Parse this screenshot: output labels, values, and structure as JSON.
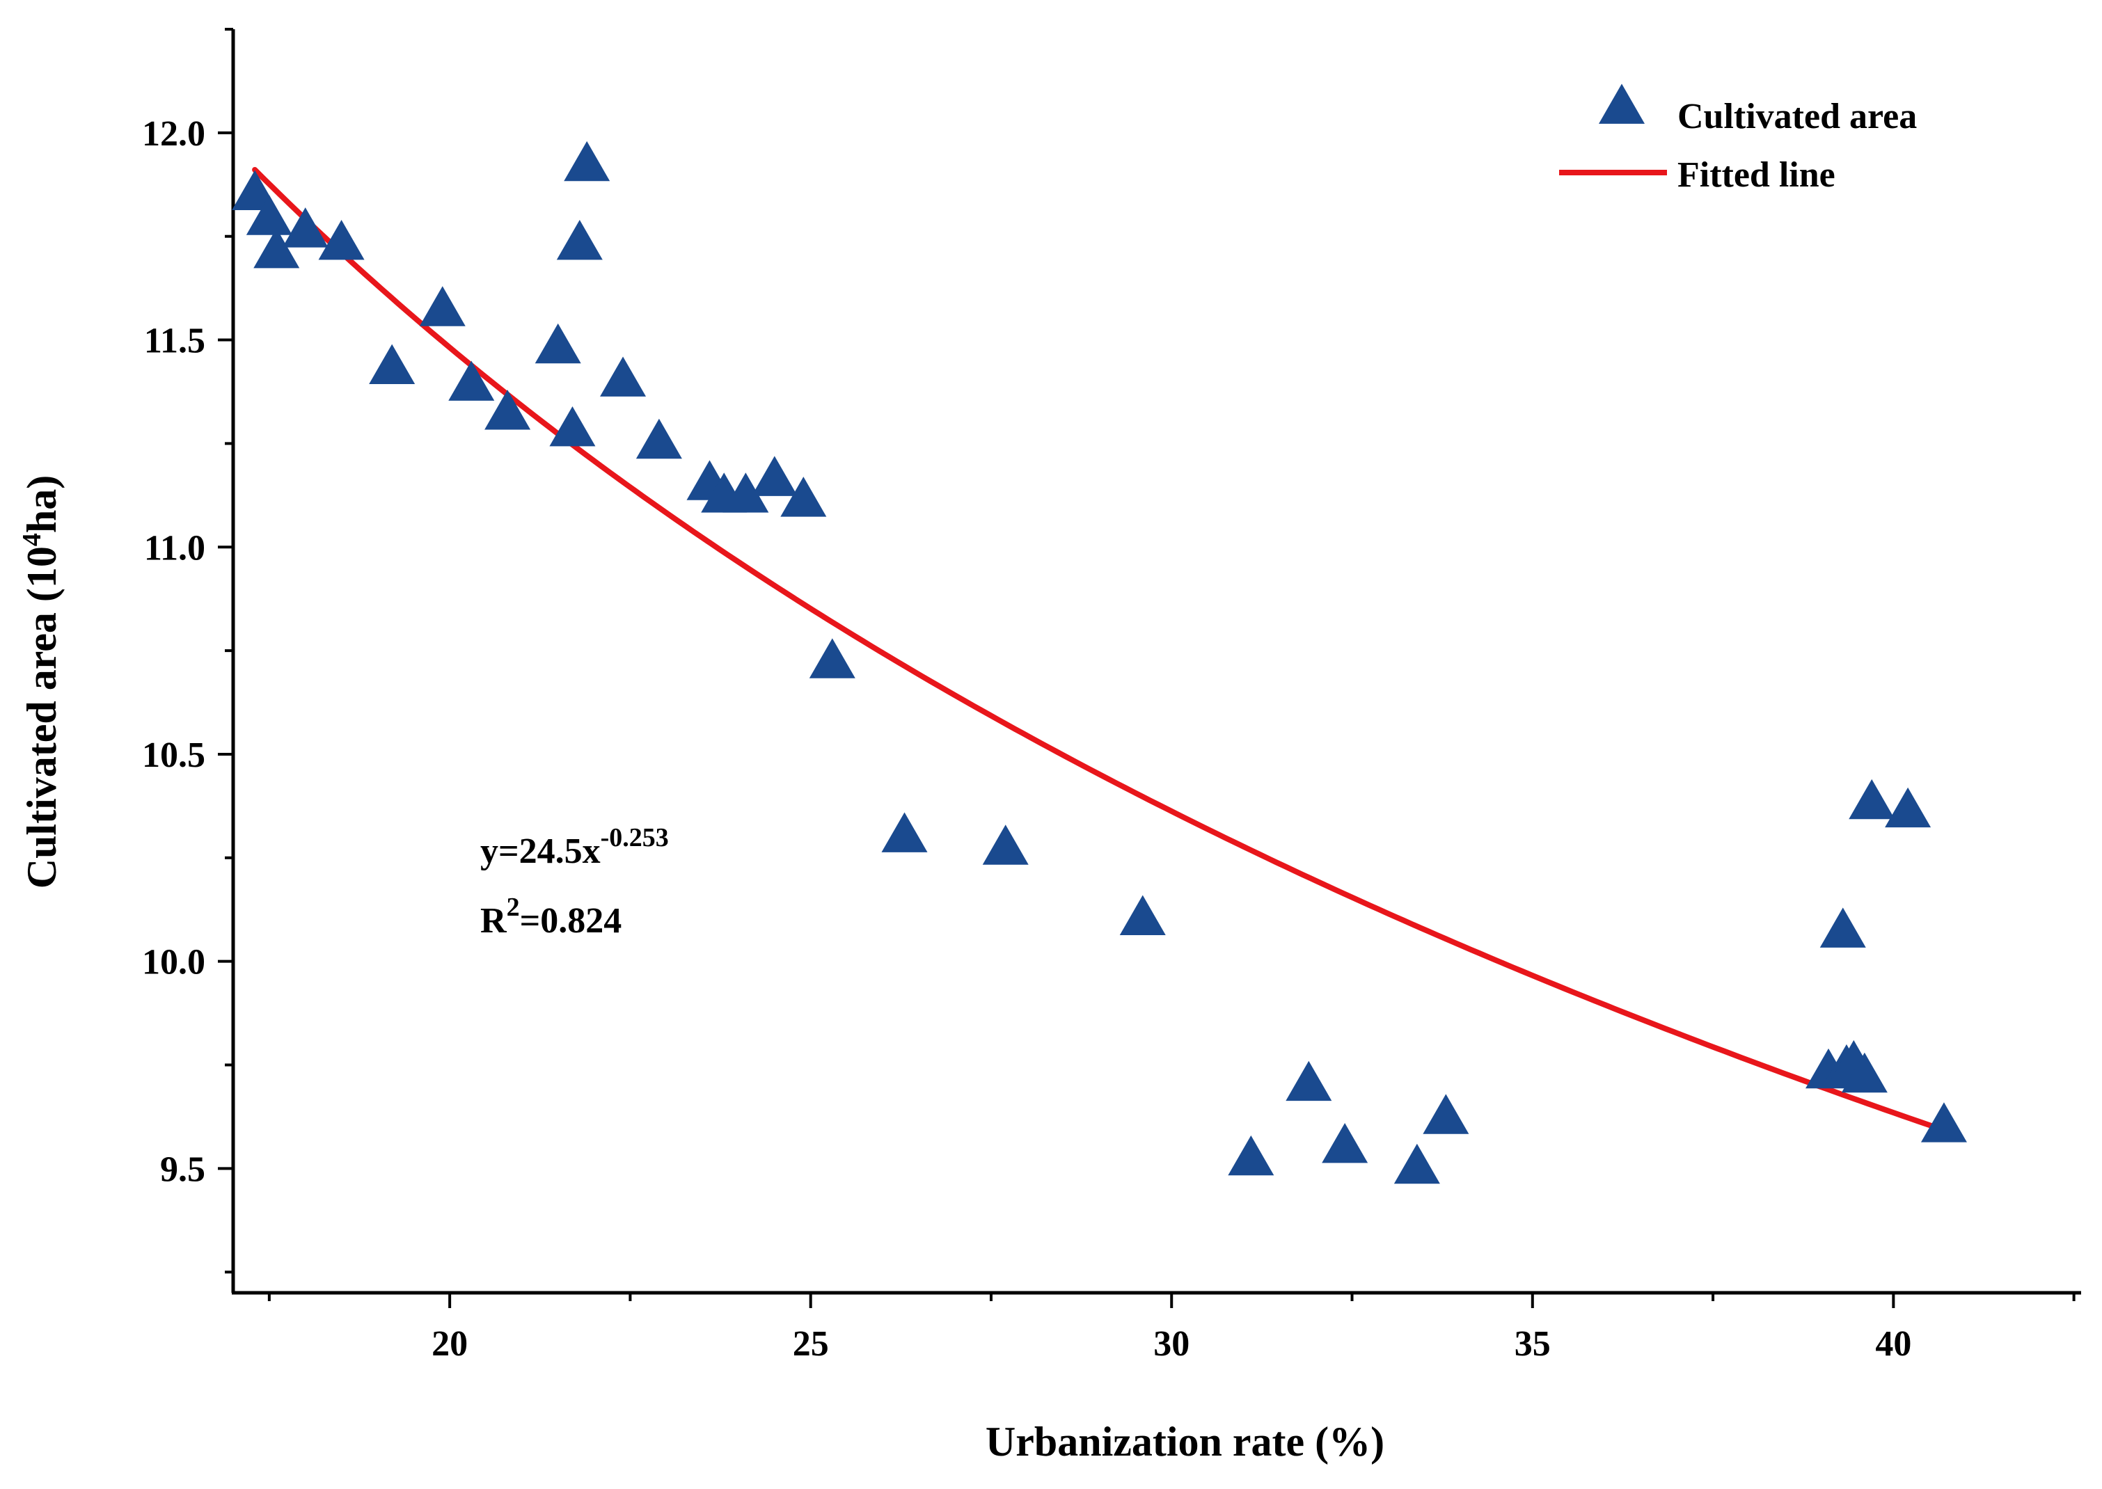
{
  "chart_data": {
    "type": "scatter",
    "xlabel": "Urbanization rate (%)",
    "ylabel_prefix": "Cultivated area (10",
    "ylabel_sup": "4",
    "ylabel_suffix": "ha)",
    "xlim": [
      17.0,
      42.6
    ],
    "ylim": [
      9.2,
      12.25
    ],
    "x_ticks": [
      20,
      25,
      30,
      35,
      40
    ],
    "x_tick_labels": [
      "20",
      "25",
      "30",
      "35",
      "40"
    ],
    "x_minor_ticks": [
      17.5,
      22.5,
      27.5,
      32.5,
      37.5,
      42.5
    ],
    "y_ticks": [
      9.5,
      10.0,
      10.5,
      11.0,
      11.5,
      12.0
    ],
    "y_tick_labels": [
      "9.5",
      "10.0",
      "10.5",
      "11.0",
      "11.5",
      "12.0"
    ],
    "y_minor_ticks": [
      9.25,
      9.75,
      10.25,
      10.75,
      11.25,
      11.75,
      12.25
    ],
    "legend": [
      {
        "name": "Cultivated area",
        "marker": "triangle",
        "color": "#1a4a8f"
      },
      {
        "name": "Fitted line",
        "marker": "line",
        "color": "#e8161b"
      }
    ],
    "annotation": {
      "equation_prefix": "y=24.5x",
      "equation_exponent": "-0.253",
      "r2_prefix": "R",
      "r2_sup": "2",
      "r2_suffix": "=0.824"
    },
    "series": [
      {
        "name": "Cultivated area",
        "type": "scatter",
        "color": "#1a4a8f",
        "points": [
          [
            17.3,
            11.85
          ],
          [
            17.5,
            11.79
          ],
          [
            17.6,
            11.71
          ],
          [
            18.0,
            11.76
          ],
          [
            18.5,
            11.73
          ],
          [
            19.2,
            11.43
          ],
          [
            19.9,
            11.57
          ],
          [
            20.3,
            11.39
          ],
          [
            20.8,
            11.32
          ],
          [
            21.5,
            11.48
          ],
          [
            21.7,
            11.28
          ],
          [
            21.8,
            11.73
          ],
          [
            21.9,
            11.92
          ],
          [
            22.4,
            11.4
          ],
          [
            22.9,
            11.25
          ],
          [
            23.6,
            11.15
          ],
          [
            23.8,
            11.12
          ],
          [
            24.1,
            11.12
          ],
          [
            24.5,
            11.16
          ],
          [
            24.9,
            11.11
          ],
          [
            25.3,
            10.72
          ],
          [
            26.3,
            10.3
          ],
          [
            27.7,
            10.27
          ],
          [
            29.6,
            10.1
          ],
          [
            31.1,
            9.52
          ],
          [
            31.9,
            9.7
          ],
          [
            32.4,
            9.55
          ],
          [
            33.4,
            9.5
          ],
          [
            33.8,
            9.62
          ],
          [
            39.1,
            9.73
          ],
          [
            39.35,
            9.74
          ],
          [
            39.45,
            9.75
          ],
          [
            39.6,
            9.72
          ],
          [
            39.3,
            10.07
          ],
          [
            39.7,
            10.38
          ],
          [
            40.2,
            10.36
          ],
          [
            40.7,
            9.6
          ]
        ]
      },
      {
        "name": "Fitted line",
        "type": "line",
        "color": "#e8161b",
        "equation": "y=24.5x^-0.253",
        "x_range": [
          17.3,
          40.7
        ]
      }
    ]
  }
}
